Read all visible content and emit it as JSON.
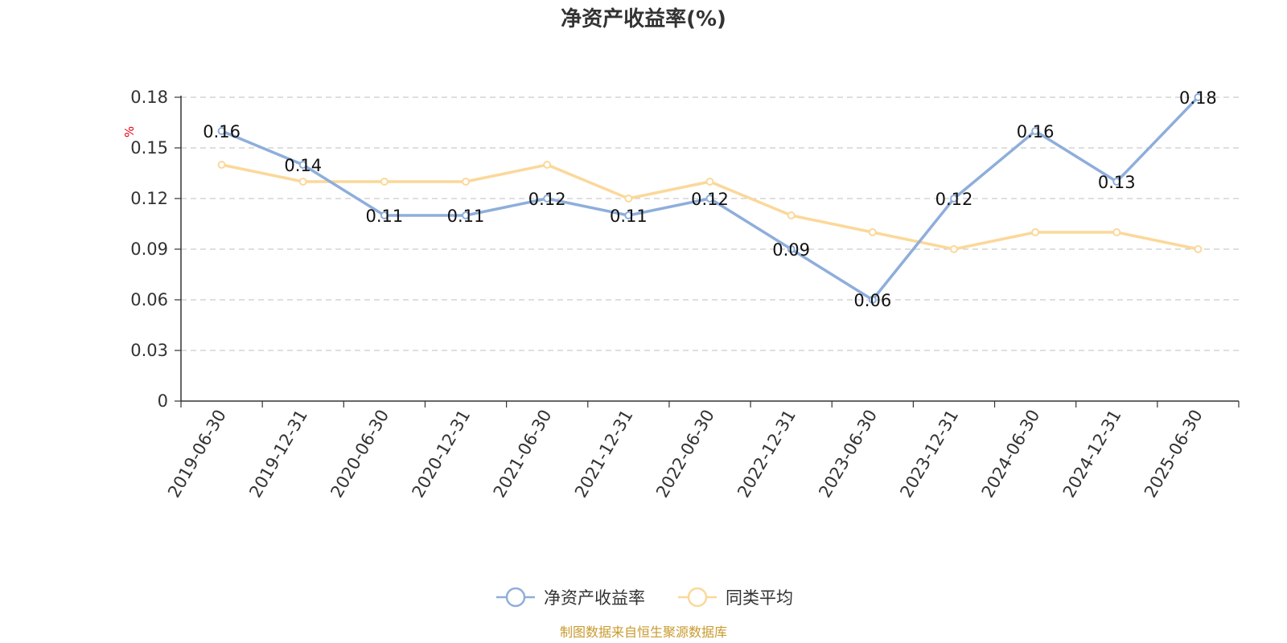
{
  "chart_data": {
    "type": "line",
    "title": "净资产收益率(%)",
    "unit_label": "%",
    "categories": [
      "2019-06-30",
      "2019-12-31",
      "2020-06-30",
      "2020-12-31",
      "2021-06-30",
      "2021-12-31",
      "2022-06-30",
      "2022-12-31",
      "2023-06-30",
      "2023-12-31",
      "2024-06-30",
      "2024-12-31",
      "2025-06-30"
    ],
    "y_ticks": [
      "0",
      "0.03",
      "0.06",
      "0.09",
      "0.12",
      "0.15",
      "0.18"
    ],
    "ylim": [
      0,
      0.18
    ],
    "grid": true,
    "legend_position": "bottom-center",
    "series": [
      {
        "name": "净资产收益率",
        "color": "#8eaedb",
        "values": [
          0.16,
          0.14,
          0.11,
          0.11,
          0.12,
          0.11,
          0.12,
          0.09,
          0.06,
          0.12,
          0.16,
          0.13,
          0.18
        ],
        "data_labels": [
          "0.16",
          "0.14",
          "0.11",
          "0.11",
          "0.12",
          "0.11",
          "0.12",
          "0.09",
          "0.06",
          "0.12",
          "0.16",
          "0.13",
          "0.18"
        ]
      },
      {
        "name": "同类平均",
        "color": "#fbd89a",
        "values": [
          0.14,
          0.13,
          0.13,
          0.13,
          0.14,
          0.12,
          0.13,
          0.11,
          0.1,
          0.09,
          0.1,
          0.1,
          0.09
        ]
      }
    ],
    "source": "制图数据来自恒生聚源数据库"
  }
}
